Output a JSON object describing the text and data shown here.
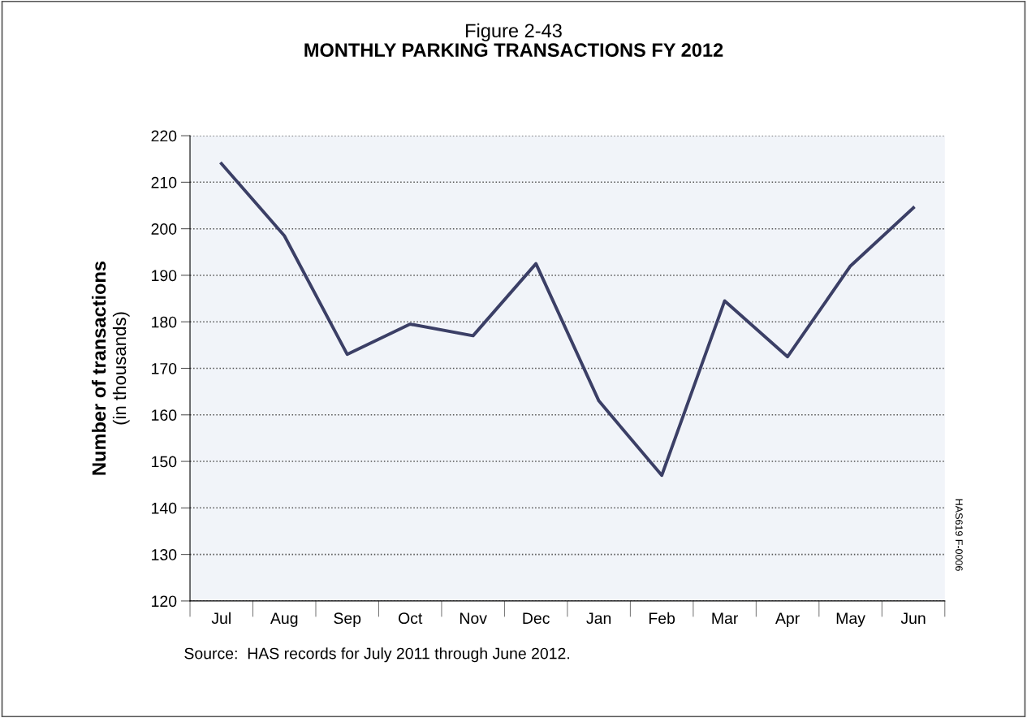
{
  "chart_data": {
    "type": "line",
    "title": "Figure 2-43",
    "subtitle": "MONTHLY PARKING TRANSACTIONS FY 2012",
    "ylabel": "Number of transactions\n(in thousands)",
    "categories": [
      "Jul",
      "Aug",
      "Sep",
      "Oct",
      "Nov",
      "Dec",
      "Jan",
      "Feb",
      "Mar",
      "Apr",
      "May",
      "Jun"
    ],
    "series": [
      {
        "color": "#3b3f66",
        "values": [
          214,
          198.5,
          173,
          179.5,
          177,
          192.5,
          163,
          147,
          184.5,
          172.5,
          192,
          204.5
        ]
      }
    ],
    "ylim": [
      120,
      220
    ],
    "yticks": [
      120,
      130,
      140,
      150,
      160,
      170,
      180,
      190,
      200,
      210,
      220
    ],
    "grid": "y",
    "marker": "none",
    "line_style": "solid",
    "annotations": [
      "HAS619 F-0006",
      "Source:  HAS records for July 2011 through June 2012."
    ]
  }
}
